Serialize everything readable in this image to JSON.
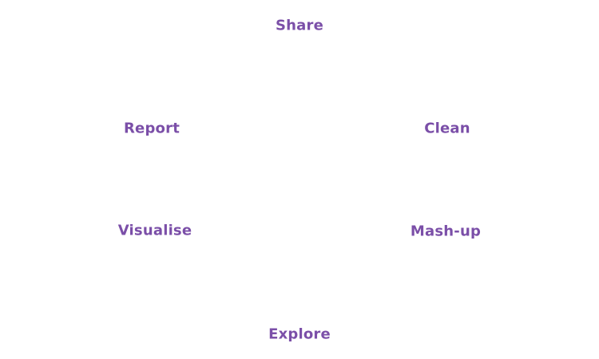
{
  "diagram": {
    "label_color": "#7b4fa8",
    "nodes": {
      "share": "Share",
      "clean": "Clean",
      "mashup": "Mash-up",
      "explore": "Explore",
      "visualise": "Visualise",
      "report": "Report"
    }
  }
}
